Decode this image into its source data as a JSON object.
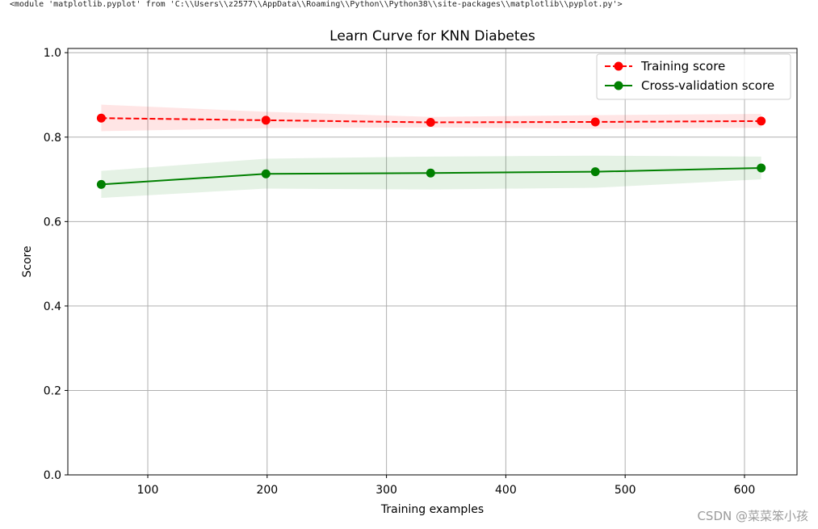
{
  "console_output": "<module 'matplotlib.pyplot' from 'C:\\\\Users\\\\z2577\\\\AppData\\\\Roaming\\\\Python\\\\Python38\\\\site-packages\\\\matplotlib\\\\pyplot.py'>",
  "watermark": "CSDN @菜菜笨小孩",
  "chart_data": {
    "type": "line",
    "title": "Learn Curve for KNN Diabetes",
    "xlabel": "Training examples",
    "ylabel": "Score",
    "xlim": [
      33,
      644
    ],
    "ylim": [
      0.0,
      1.01
    ],
    "xticks": [
      100,
      200,
      300,
      400,
      500,
      600
    ],
    "yticks": [
      0.0,
      0.2,
      0.4,
      0.6,
      0.8,
      1.0
    ],
    "xtick_labels": [
      "100",
      "200",
      "300",
      "400",
      "500",
      "600"
    ],
    "ytick_labels": [
      "0.0",
      "0.2",
      "0.4",
      "0.6",
      "0.8",
      "1.0"
    ],
    "grid": true,
    "legend_position": "upper right",
    "x": [
      61,
      199,
      337,
      475,
      614
    ],
    "series": [
      {
        "name": "Training score",
        "color": "#ff0000",
        "linestyle": "dashed",
        "marker": "circle",
        "values": [
          0.845,
          0.84,
          0.835,
          0.836,
          0.838
        ],
        "band_lower": [
          0.814,
          0.821,
          0.823,
          0.82,
          0.822
        ],
        "band_upper": [
          0.877,
          0.86,
          0.848,
          0.852,
          0.855
        ]
      },
      {
        "name": "Cross-validation score",
        "color": "#008000",
        "linestyle": "solid",
        "marker": "circle",
        "values": [
          0.688,
          0.713,
          0.715,
          0.718,
          0.727
        ],
        "band_lower": [
          0.656,
          0.678,
          0.676,
          0.68,
          0.7
        ],
        "band_upper": [
          0.72,
          0.749,
          0.754,
          0.756,
          0.754
        ]
      }
    ]
  }
}
